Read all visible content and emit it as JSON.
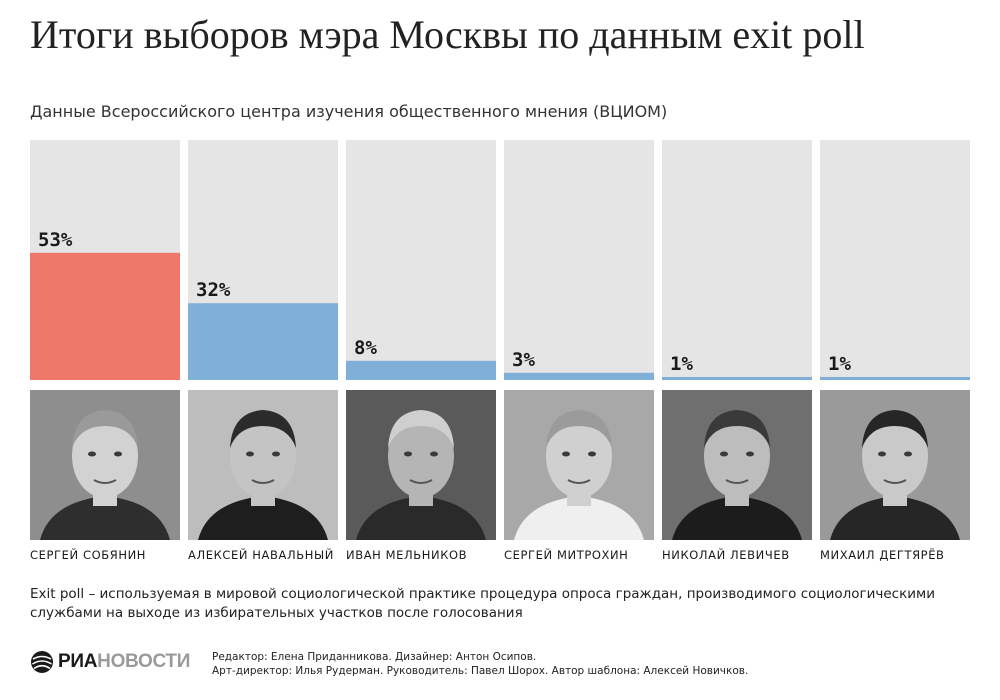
{
  "title": "Итоги выборов мэра Москвы по данным exit poll",
  "subtitle": "Данные Всероссийского центра изучения общественного мнения (ВЦИОМ)",
  "chart_data": {
    "type": "bar",
    "categories": [
      "СЕРГЕЙ СОБЯНИН",
      "АЛЕКСЕЙ НАВАЛЬНЫЙ",
      "ИВАН МЕЛЬНИКОВ",
      "СЕРГЕЙ МИТРОХИН",
      "НИКОЛАЙ ЛЕВИЧЕВ",
      "МИХАИЛ ДЕГТЯРЁВ"
    ],
    "values": [
      53,
      32,
      8,
      3,
      1,
      1
    ],
    "value_labels": [
      "53%",
      "32%",
      "8%",
      "3%",
      "1%",
      "1%"
    ],
    "ylim": [
      0,
      100
    ],
    "colors": [
      "#ee7869",
      "#80b0d8",
      "#80b0d8",
      "#80b0d8",
      "#80b0d8",
      "#80b0d8"
    ],
    "track_color": "#e5e5e5"
  },
  "footnote": "Exit poll – используемая в мировой социологической практике процедура опроса граждан, производимого социологическими службами на выходе из избирательных участков после голосования",
  "logo": {
    "part1": "РИА",
    "part2": "НОВОСТИ"
  },
  "credits": {
    "line1": "Редактор: Елена Приданникова. Дизайнер: Антон Осипов.",
    "line2": "Арт-директор: Илья Рудерман. Руководитель: Павел Шорох. Автор шаблона: Алексей Новичков."
  }
}
